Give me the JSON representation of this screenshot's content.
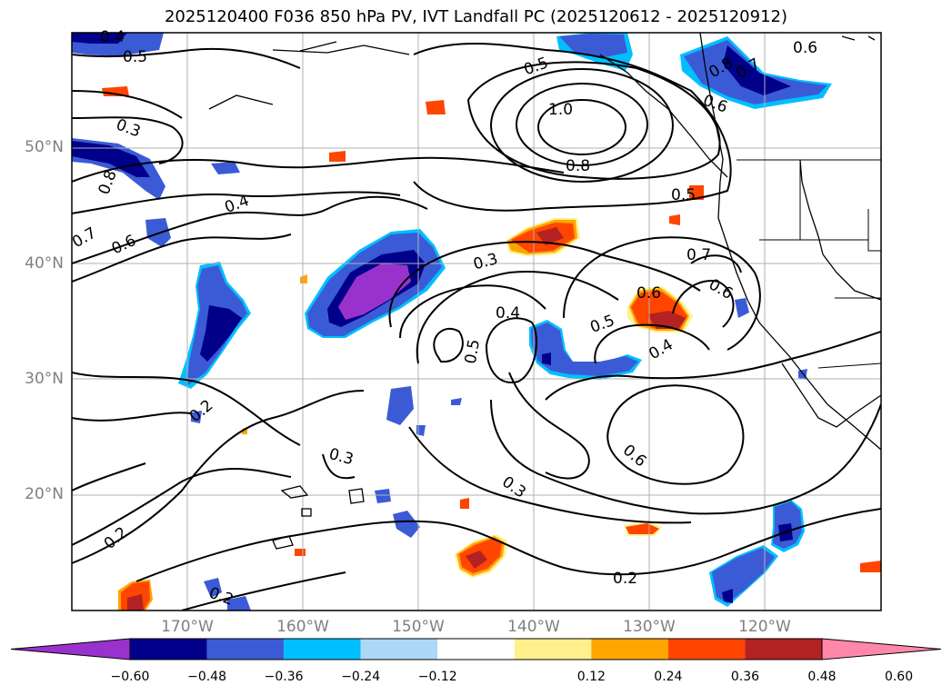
{
  "title": "2025120400 F036 850 hPa PV, IVT Landfall PC (2025120612 - 2025120912)",
  "axes": {
    "lat_labels": [
      "50°N",
      "40°N",
      "30°N",
      "20°N"
    ],
    "lon_labels": [
      "170°W",
      "160°W",
      "150°W",
      "140°W",
      "130°W",
      "120°W"
    ]
  },
  "contour_labels": [
    {
      "text": "0.4",
      "name": "contour-label-0.4-nw"
    },
    {
      "text": "0.5",
      "name": "contour-label-0.5-nw"
    },
    {
      "text": "0.3",
      "name": "contour-label-0.3-nw"
    },
    {
      "text": "0.8",
      "name": "contour-label-0.8-w"
    },
    {
      "text": "0.7",
      "name": "contour-label-0.7-w"
    },
    {
      "text": "0.6",
      "name": "contour-label-0.6-w"
    },
    {
      "text": "0.4",
      "name": "contour-label-0.4-w"
    },
    {
      "text": "0.2",
      "name": "contour-label-0.2-w"
    },
    {
      "text": "0.2",
      "name": "contour-label-0.2-sw"
    },
    {
      "text": "0.2",
      "name": "contour-label-0.2-s"
    },
    {
      "text": "0.3",
      "name": "contour-label-0.3-c"
    },
    {
      "text": "0.5",
      "name": "contour-label-0.5-c"
    },
    {
      "text": "0.4",
      "name": "contour-label-0.4-c"
    },
    {
      "text": "0.3",
      "name": "contour-label-0.3-n"
    },
    {
      "text": "0.5",
      "name": "contour-label-0.5-n"
    },
    {
      "text": "1.0",
      "name": "contour-label-1.0"
    },
    {
      "text": "0.8",
      "name": "contour-label-0.8-n"
    },
    {
      "text": "0.5",
      "name": "contour-label-0.5-e"
    },
    {
      "text": "0.7",
      "name": "contour-label-0.7-ne"
    },
    {
      "text": "0.6",
      "name": "contour-label-0.6-ne"
    },
    {
      "text": "0.6",
      "name": "contour-label-0.6-e"
    },
    {
      "text": "0.5",
      "name": "contour-label-0.5-se"
    },
    {
      "text": "0.4",
      "name": "contour-label-0.4-se"
    },
    {
      "text": "0.6",
      "name": "contour-label-0.6-s"
    },
    {
      "text": "0.3",
      "name": "contour-label-0.3-s"
    },
    {
      "text": "0.2",
      "name": "contour-label-0.2-se"
    },
    {
      "text": "0.8",
      "name": "contour-label-0.8-ne"
    },
    {
      "text": "0.7",
      "name": "contour-label-0.7-far-ne"
    },
    {
      "text": "0.6",
      "name": "contour-label-0.6-far-ne"
    },
    {
      "text": "0.6",
      "name": "contour-label-0.6-coast"
    }
  ],
  "colorbar": {
    "ticks": [
      "−0.60",
      "−0.48",
      "−0.36",
      "−0.24",
      "−0.12",
      "0.12",
      "0.24",
      "0.36",
      "0.48",
      "0.60"
    ],
    "colors": [
      "#9932cc",
      "#00008b",
      "#3b5bd6",
      "#00bfff",
      "#add8f5",
      "#ffffff",
      "#fff08c",
      "#ffa500",
      "#ff4500",
      "#b22222",
      "#ff88aa"
    ]
  },
  "shading_colors": {
    "neg_deep": "#9932cc",
    "neg_dark": "#00008b",
    "neg_mid": "#3b5bd6",
    "neg_light": "#00bfff",
    "pos_light": "#fff08c",
    "pos_mid": "#ffa500",
    "pos_strong": "#ff4500",
    "pos_deep": "#b22222"
  }
}
